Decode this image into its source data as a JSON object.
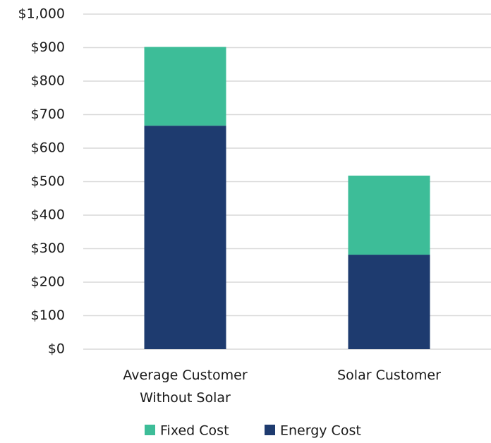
{
  "chart_data": {
    "type": "stacked_bar",
    "categories": [
      "Average Customer\nWithout Solar",
      "Solar Customer"
    ],
    "series": [
      {
        "name": "Energy Cost",
        "color": "#1e3b6f",
        "values": [
          667,
          282
        ]
      },
      {
        "name": "Fixed Cost",
        "color": "#3dbd98",
        "values": [
          235,
          236
        ]
      }
    ],
    "ylim": [
      0,
      1000
    ],
    "yticks": [
      {
        "value": 0,
        "label": "$0"
      },
      {
        "value": 100,
        "label": "$100"
      },
      {
        "value": 200,
        "label": "$200"
      },
      {
        "value": 300,
        "label": "$300"
      },
      {
        "value": 400,
        "label": "$400"
      },
      {
        "value": 500,
        "label": "$500"
      },
      {
        "value": 600,
        "label": "$600"
      },
      {
        "value": 700,
        "label": "$700"
      },
      {
        "value": 800,
        "label": "$800"
      },
      {
        "value": 900,
        "label": "$900"
      },
      {
        "value": 1000,
        "label": "$1,000"
      }
    ],
    "grid": true,
    "legend": "bottom"
  }
}
